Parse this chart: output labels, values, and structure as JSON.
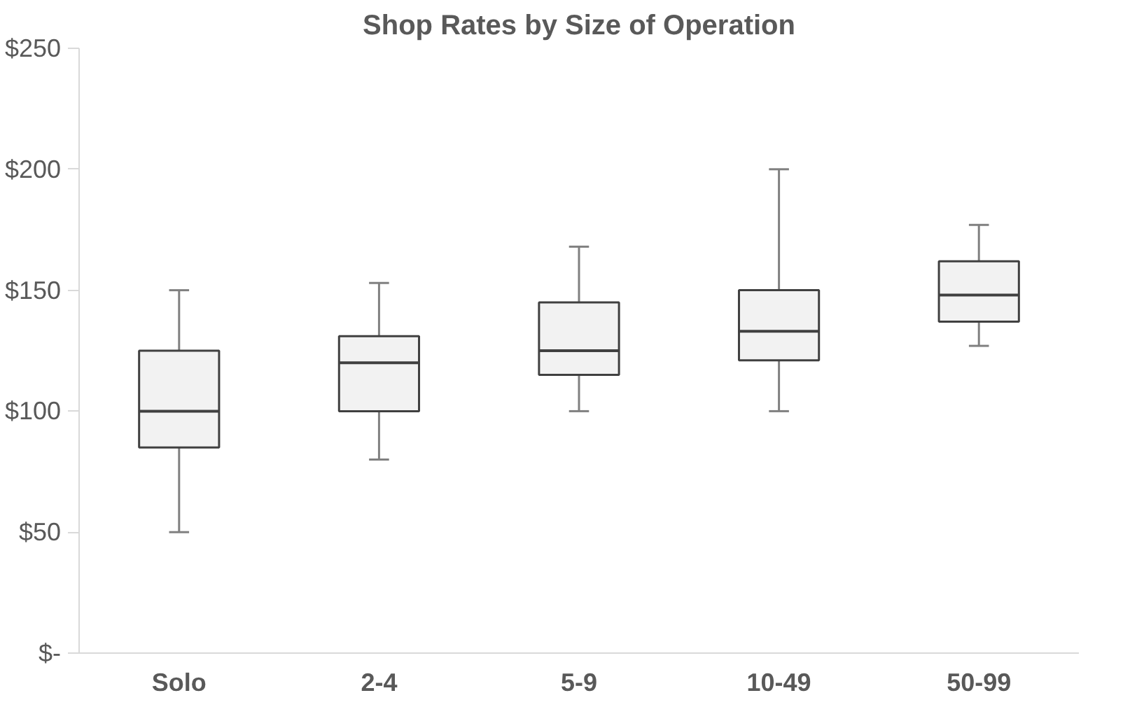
{
  "chart_data": {
    "type": "box",
    "title": "Shop Rates by Size of Operation",
    "categories": [
      "Solo",
      "2-4",
      "5-9",
      "10-49",
      "50-99"
    ],
    "color": "#f2f2f2",
    "boxes": [
      {
        "low": 50,
        "q1": 85,
        "median": 100,
        "q3": 125,
        "high": 150
      },
      {
        "low": 80,
        "q1": 100,
        "median": 120,
        "q3": 131,
        "high": 153
      },
      {
        "low": 100,
        "q1": 115,
        "median": 125,
        "q3": 145,
        "high": 168
      },
      {
        "low": 100,
        "q1": 121,
        "median": 133,
        "q3": 150,
        "high": 200
      },
      {
        "low": 127,
        "q1": 137,
        "median": 148,
        "q3": 162,
        "high": 177
      }
    ],
    "ylim": [
      0,
      250
    ],
    "yticks": [
      {
        "value": 0,
        "label": "$-"
      },
      {
        "value": 50,
        "label": "$50"
      },
      {
        "value": 100,
        "label": "$100"
      },
      {
        "value": 150,
        "label": "$150"
      },
      {
        "value": 200,
        "label": "$200"
      },
      {
        "value": 250,
        "label": "$250"
      }
    ],
    "grid": false
  }
}
